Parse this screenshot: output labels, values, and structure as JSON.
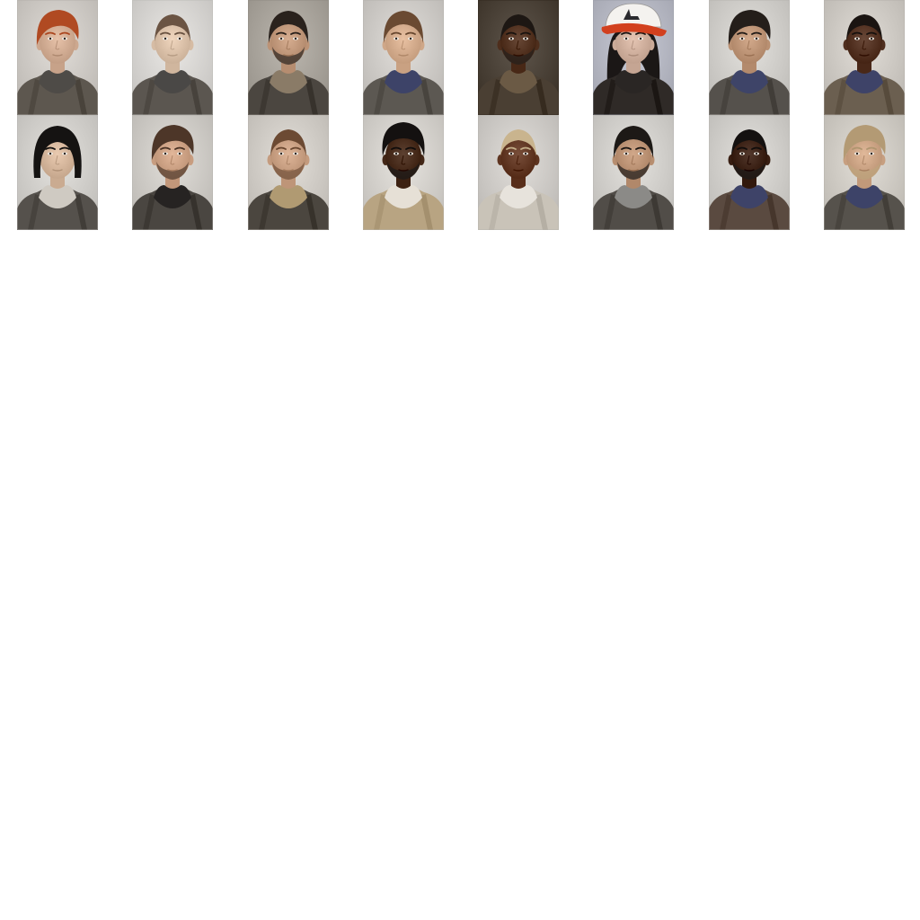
{
  "roster": {
    "portraits": [
      {
        "id": "p1",
        "bg": "#cfcbc6",
        "skin": "#d9b49b",
        "hair": "#b04a22",
        "hair_style": "short-swept",
        "collar": "#4e4b47",
        "jacket": "#5d574f",
        "beard": false,
        "cap": false
      },
      {
        "id": "p2",
        "bg": "#d8d6d3",
        "skin": "#e2c8b0",
        "hair": "#6b5443",
        "hair_style": "buzz",
        "collar": "#4a4846",
        "jacket": "#5b5650",
        "beard": false,
        "cap": false
      },
      {
        "id": "p3",
        "bg": "#aaa59d",
        "skin": "#c89f82",
        "hair": "#2a221d",
        "hair_style": "short",
        "collar": "#8a7b67",
        "jacket": "#4b4640",
        "beard": true,
        "cap": false
      },
      {
        "id": "p4",
        "bg": "#cfccc8",
        "skin": "#dbb394",
        "hair": "#6a4a32",
        "hair_style": "short",
        "collar": "#3d4368",
        "jacket": "#5c5852",
        "beard": false,
        "cap": false
      },
      {
        "id": "p5",
        "bg": "#4d443a",
        "skin": "#5a3a28",
        "hair": "#1d1713",
        "hair_style": "buzz",
        "collar": "#6b5a45",
        "jacket": "#4a3f33",
        "beard": true,
        "cap": false
      },
      {
        "id": "p6",
        "bg": "#b7b9c4",
        "skin": "#d7b7a5",
        "hair": "#1b1716",
        "hair_style": "long",
        "collar": "#2a2624",
        "jacket": "#2f2a27",
        "beard": false,
        "cap": true
      },
      {
        "id": "p7",
        "bg": "#d1cfcb",
        "skin": "#c59c7e",
        "hair": "#241e1a",
        "hair_style": "short-swept",
        "collar": "#3e4468",
        "jacket": "#55514c",
        "beard": false,
        "cap": false
      },
      {
        "id": "p8",
        "bg": "#cfcbc5",
        "skin": "#5b3a2a",
        "hair": "#1a1411",
        "hair_style": "buzz",
        "collar": "#3e4368",
        "jacket": "#6b5f50",
        "beard": false,
        "cap": false
      },
      {
        "id": "p9",
        "bg": "#d2d0cc",
        "skin": "#dcbda3",
        "hair": "#151312",
        "hair_style": "bob",
        "collar": "#cfcac2",
        "jacket": "#55514c",
        "beard": false,
        "cap": false
      },
      {
        "id": "p10",
        "bg": "#cfccc7",
        "skin": "#d4a98c",
        "hair": "#4d3628",
        "hair_style": "short-swept",
        "collar": "#262322",
        "jacket": "#4a4641",
        "beard": true,
        "cap": false
      },
      {
        "id": "p11",
        "bg": "#d1cdc7",
        "skin": "#d0a78a",
        "hair": "#6c4a33",
        "hair_style": "buzz",
        "collar": "#b09a72",
        "jacket": "#4b463f",
        "beard": true,
        "cap": false
      },
      {
        "id": "p12",
        "bg": "#d5d2cd",
        "skin": "#4f3323",
        "hair": "#141110",
        "hair_style": "curly",
        "collar": "#e6e0d6",
        "jacket": "#b8a482",
        "beard": true,
        "cap": false
      },
      {
        "id": "p13",
        "bg": "#cfccc8",
        "skin": "#6a402c",
        "hair": "#c9b48e",
        "hair_style": "buzz",
        "collar": "#e7e3dc",
        "jacket": "#c9c3b8",
        "beard": false,
        "cap": false
      },
      {
        "id": "p14",
        "bg": "#d2d0cc",
        "skin": "#c39a7c",
        "hair": "#1d1916",
        "hair_style": "short",
        "collar": "#8b8a87",
        "jacket": "#514d48",
        "beard": true,
        "cap": false
      },
      {
        "id": "p15",
        "bg": "#d1cfcb",
        "skin": "#442a1e",
        "hair": "#141110",
        "hair_style": "buzz",
        "collar": "#3e4368",
        "jacket": "#5a4a40",
        "beard": true,
        "cap": false
      },
      {
        "id": "p16",
        "bg": "#d0ccc5",
        "skin": "#d3ab8c",
        "hair": "#b39a74",
        "hair_style": "short-swept",
        "collar": "#3d4368",
        "jacket": "#56524c",
        "beard": true,
        "cap": false
      }
    ]
  }
}
